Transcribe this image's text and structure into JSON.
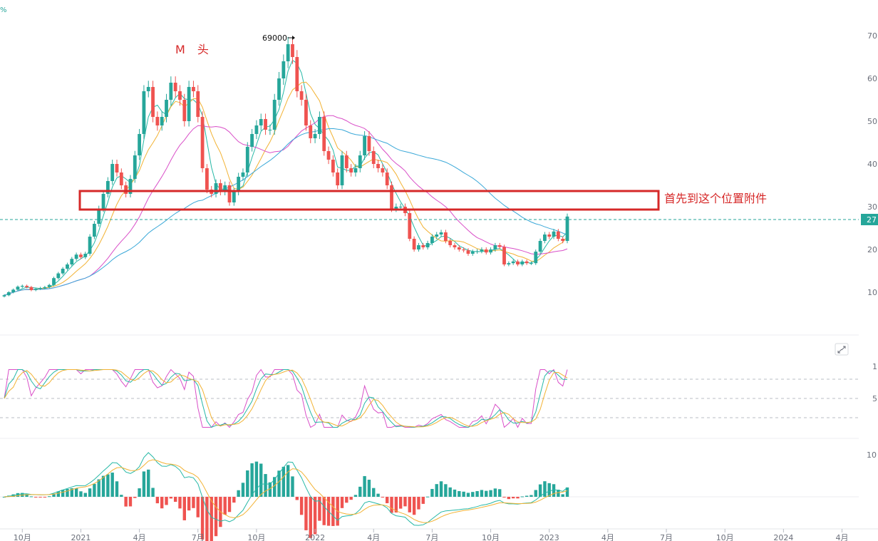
{
  "chart_data": [
    {
      "type": "candlestick",
      "price_axis": {
        "ticks": [
          "70",
          "60",
          "50",
          "40",
          "30",
          "20",
          "10"
        ],
        "values": [
          70000,
          60000,
          50000,
          40000,
          30000,
          20000,
          10000
        ],
        "ylim": [
          5000,
          77000
        ]
      },
      "current_price": {
        "label": "27",
        "value": 27700
      },
      "time_axis": {
        "ticks": [
          "7月",
          "10月",
          "2021",
          "4月",
          "7月",
          "10月",
          "2022",
          "4月",
          "7月",
          "10月",
          "2023",
          "4月",
          "7月",
          "10月",
          "2024",
          "4月"
        ],
        "tick_weeks": [
          -9,
          4,
          17,
          30,
          43,
          56,
          69,
          82,
          95,
          108,
          121,
          134,
          147,
          160,
          173,
          186
        ]
      },
      "annotations": {
        "peak_label": "69000",
        "pattern_label": "M 头",
        "zone_text": "首先到这个位置附件",
        "zone_price_range": [
          29500,
          33500
        ]
      },
      "weekly_close": [
        9300,
        10000,
        10600,
        11300,
        11500,
        11200,
        10500,
        10800,
        11000,
        11200,
        11700,
        13300,
        14400,
        15500,
        16500,
        17800,
        18800,
        18200,
        19000,
        23000,
        26000,
        29500,
        33000,
        36000,
        40000,
        38000,
        35000,
        33000,
        36500,
        42000,
        47000,
        57000,
        58000,
        51000,
        49000,
        51000,
        55000,
        59000,
        57000,
        55000,
        50000,
        58000,
        57000,
        51000,
        39000,
        34000,
        33000,
        35500,
        33500,
        35000,
        31000,
        33500,
        37000,
        38000,
        44000,
        47000,
        49000,
        50500,
        48000,
        48000,
        55000,
        60000,
        64000,
        68000,
        65000,
        57000,
        55000,
        49000,
        46000,
        47000,
        51000,
        43000,
        41000,
        38000,
        35000,
        42000,
        39000,
        38000,
        39000,
        42000,
        46500,
        43000,
        40000,
        39000,
        38000,
        35000,
        29500,
        30000,
        30000,
        28500,
        22500,
        20000,
        21000,
        20500,
        21500,
        23000,
        23500,
        24000,
        22000,
        21000,
        20500,
        20000,
        19800,
        19000,
        19500,
        19600,
        20000,
        19300,
        20000,
        21000,
        20600,
        16500,
        16800,
        17200,
        16500,
        17200,
        16800,
        16800,
        19500,
        22000,
        23500,
        23000,
        24200,
        22500,
        22000,
        27700
      ]
    },
    {
      "type": "line",
      "name": "oscillator",
      "levels": [
        80,
        50,
        20
      ],
      "tick_labels": [
        "1",
        "5"
      ]
    },
    {
      "type": "bar",
      "name": "histogram",
      "tick_labels": [
        "10"
      ]
    }
  ],
  "colors": {
    "up": "#26a69a",
    "down": "#ef5350",
    "ma1": "#26b8a6",
    "ma2": "#f2b233",
    "ma3": "#d94fc8",
    "ma4": "#3aa8d8",
    "zone": "#d62828"
  },
  "icons": {
    "expand": "expand-icon"
  }
}
